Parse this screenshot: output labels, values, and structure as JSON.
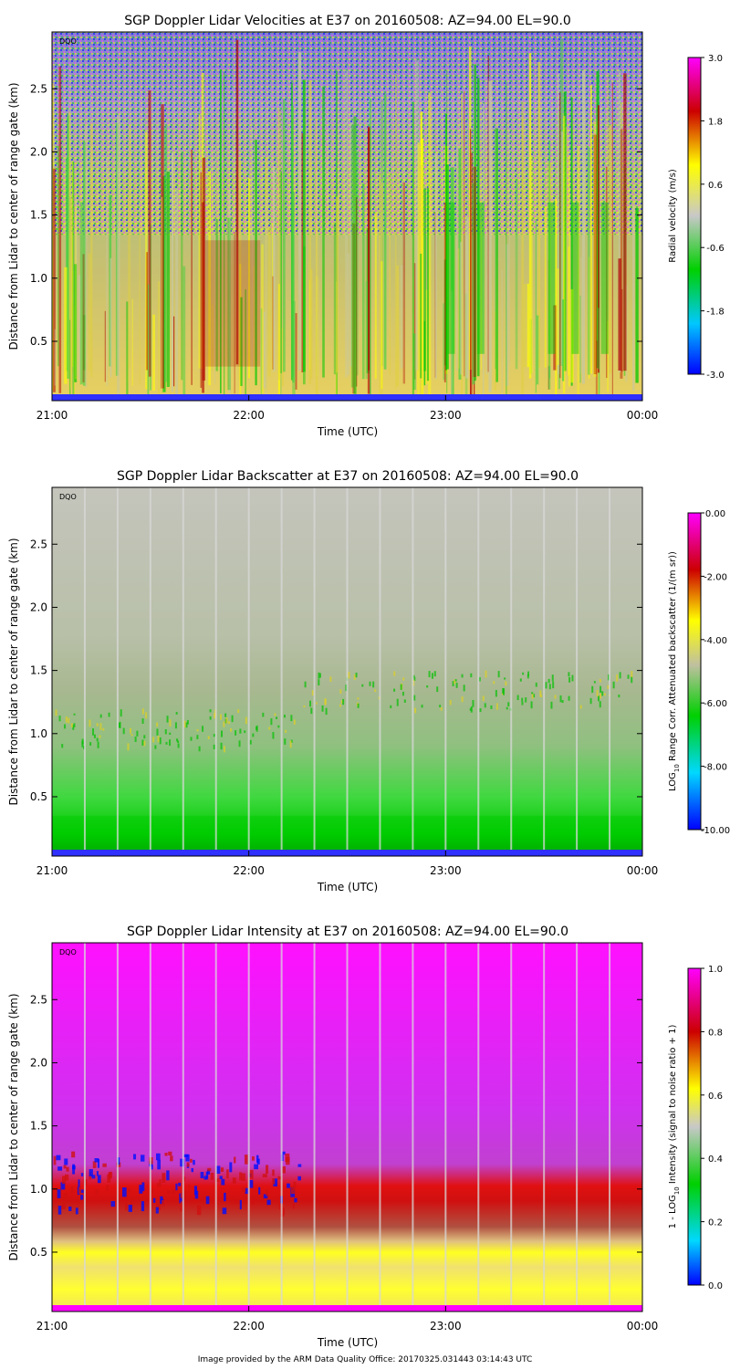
{
  "chart_data": [
    {
      "type": "heatmap",
      "title": "SGP Doppler Lidar Velocities at E37 on 20160508: AZ=94.00 EL=90.0",
      "xlabel": "Time (UTC)",
      "ylabel": "Distance from Lidar to center of range gate (km)",
      "x_ticks": [
        "21:00",
        "22:00",
        "23:00",
        "00:00"
      ],
      "y_ticks": [
        "0.5",
        "1.0",
        "1.5",
        "2.0",
        "2.5"
      ],
      "ylim": [
        0.03,
        2.95
      ],
      "dqo_label": "DQO",
      "colorbar": {
        "label": "Radial velocity (m/s)",
        "ticks": [
          "3.0",
          "1.8",
          "0.6",
          "-0.6",
          "-1.8",
          "-3.0"
        ],
        "range": [
          -3.0,
          3.0
        ],
        "colors": [
          "#0000ff",
          "#00c0ff",
          "#00d000",
          "#c0c0c0",
          "#ffff00",
          "#c00000",
          "#ff00ff"
        ]
      }
    },
    {
      "type": "heatmap",
      "title": "SGP Doppler Lidar Backscatter at E37 on 20160508: AZ=94.00 EL=90.0",
      "xlabel": "Time (UTC)",
      "ylabel": "Distance from Lidar to center of range gate (km)",
      "x_ticks": [
        "21:00",
        "22:00",
        "23:00",
        "00:00"
      ],
      "y_ticks": [
        "0.5",
        "1.0",
        "1.5",
        "2.0",
        "2.5"
      ],
      "ylim": [
        0.03,
        2.95
      ],
      "dqo_label": "DQO",
      "colorbar": {
        "label": "LOG10 Range Corr. Attenuated backscatter (1/(m sr))",
        "label_parts": [
          "LOG",
          "10",
          " Range Corr. Attenuated backscatter (1/(m sr))"
        ],
        "ticks": [
          "0.00",
          "-2.00",
          "-4.00",
          "-6.00",
          "-8.00",
          "-10.00"
        ],
        "range": [
          -10.0,
          0.0
        ],
        "colors": [
          "#0000ff",
          "#00d0ff",
          "#00d000",
          "#c0c0c0",
          "#ffff00",
          "#c00000",
          "#ff00ff"
        ]
      }
    },
    {
      "type": "heatmap",
      "title": "SGP Doppler Lidar Intensity at E37 on 20160508: AZ=94.00 EL=90.0",
      "xlabel": "Time (UTC)",
      "ylabel": "Distance from Lidar to center of range gate (km)",
      "x_ticks": [
        "21:00",
        "22:00",
        "23:00",
        "00:00"
      ],
      "y_ticks": [
        "0.5",
        "1.0",
        "1.5",
        "2.0",
        "2.5"
      ],
      "ylim": [
        0.03,
        2.95
      ],
      "dqo_label": "DQO",
      "colorbar": {
        "label": "1 - LOG10 Intensity (signal to noise ratio + 1)",
        "label_parts": [
          "1 - LOG",
          "10",
          " Intensity (signal to noise ratio + 1)"
        ],
        "ticks": [
          "1.0",
          "0.8",
          "0.6",
          "0.4",
          "0.2",
          "0.0"
        ],
        "range": [
          0.0,
          1.0
        ],
        "colors": [
          "#0000ff",
          "#00d0ff",
          "#00d000",
          "#c0c0c0",
          "#ffff00",
          "#c00000",
          "#ff00ff"
        ]
      }
    }
  ],
  "footer": "Image provided by the ARM Data Quality Office: 20170325.031443 03:14:43 UTC"
}
